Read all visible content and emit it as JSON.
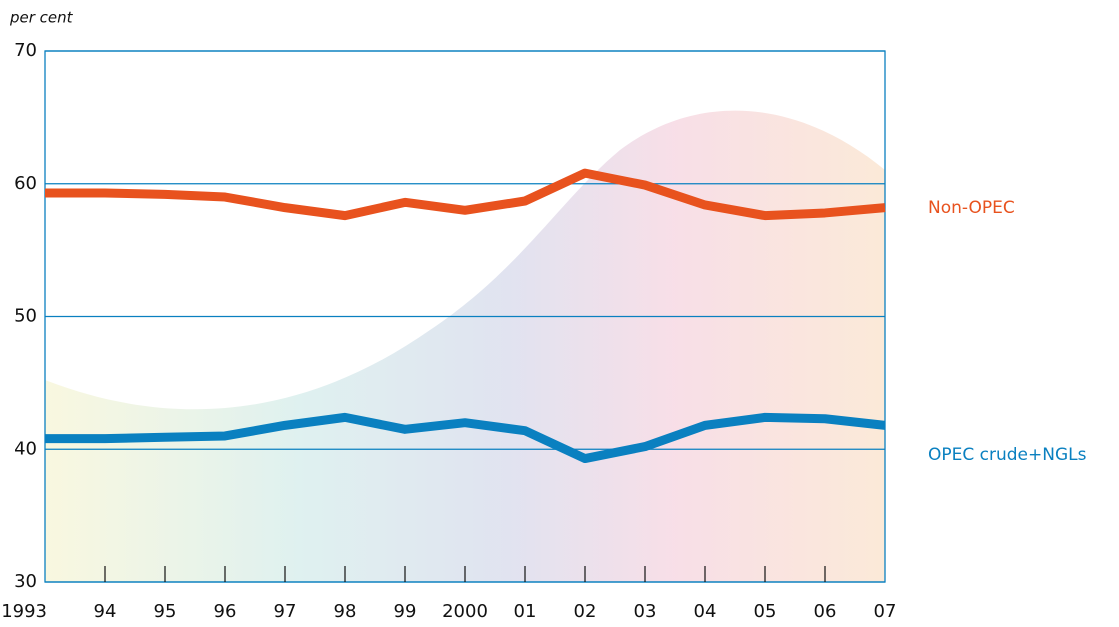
{
  "chart_data": {
    "type": "line",
    "y_label": "per cent",
    "categories": [
      "1993",
      "94",
      "95",
      "96",
      "97",
      "98",
      "99",
      "2000",
      "01",
      "02",
      "03",
      "04",
      "05",
      "06",
      "07"
    ],
    "series": [
      {
        "name": "Non-OPEC",
        "color": "#e8521e",
        "values": [
          59.3,
          59.3,
          59.2,
          59.0,
          58.2,
          57.6,
          58.6,
          58.0,
          58.7,
          60.8,
          59.9,
          58.4,
          57.6,
          57.8,
          58.2
        ]
      },
      {
        "name": "OPEC crude+NGLs",
        "color": "#0a80c0",
        "values": [
          40.8,
          40.8,
          40.9,
          41.0,
          41.8,
          42.4,
          41.5,
          42.0,
          41.4,
          39.3,
          40.2,
          41.8,
          42.4,
          42.3,
          41.8
        ]
      }
    ],
    "ylim": [
      30,
      70
    ],
    "yticks": [
      30,
      40,
      50,
      60,
      70
    ],
    "grid": true,
    "frame_color": "#0a80c0"
  }
}
